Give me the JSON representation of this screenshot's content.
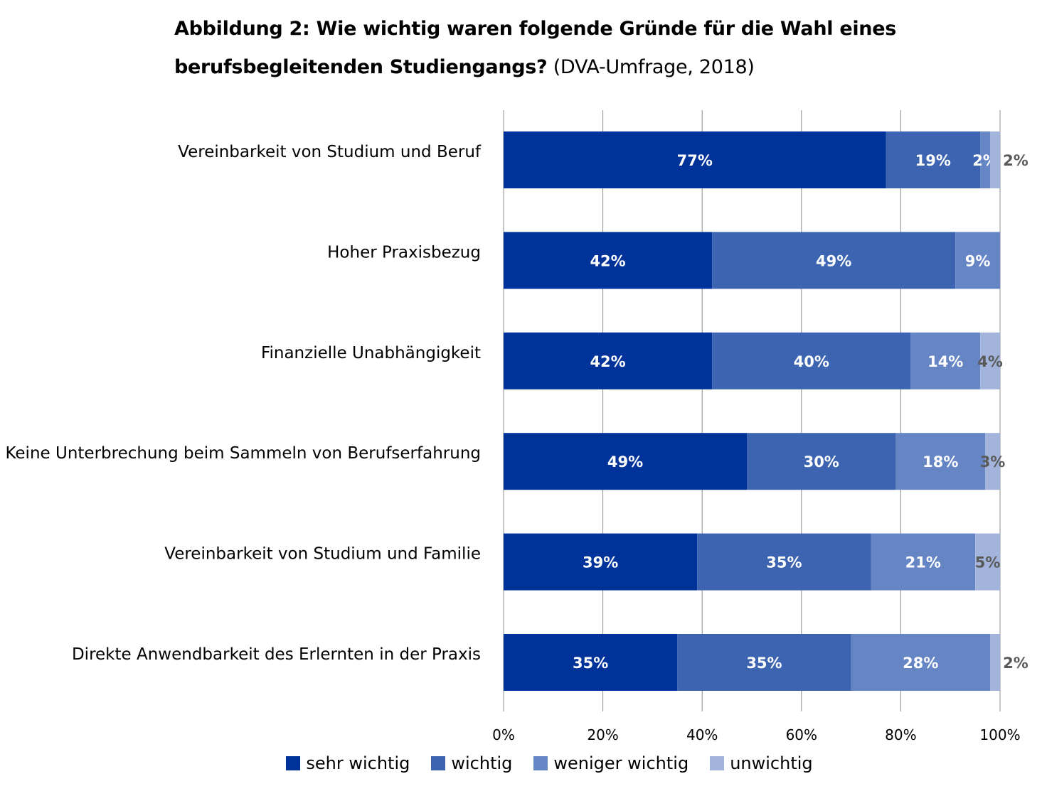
{
  "title": {
    "bold": "Abbildung 2: Wie wichtig waren folgende Gründe für die Wahl eines berufsbegleitenden Studiengangs?",
    "normal": "(DVA-Umfrage, 2018)"
  },
  "chart_data": {
    "type": "bar",
    "orientation": "horizontal",
    "stacked": true,
    "categories": [
      "Vereinbarkeit von Studium und Beruf",
      "Hoher Praxisbezug",
      "Finanzielle Unabhängigkeit",
      "Keine Unterbrechung beim Sammeln von Berufserfahrung",
      "Vereinbarkeit von Studium und Familie",
      "Direkte Anwendbarkeit des Erlernten in der Praxis"
    ],
    "series": [
      {
        "name": "sehr wichtig",
        "color": "#003399",
        "values": [
          77,
          42,
          42,
          49,
          39,
          35
        ]
      },
      {
        "name": "wichtig",
        "color": "#3c64b0",
        "values": [
          19,
          49,
          40,
          30,
          35,
          35
        ]
      },
      {
        "name": "weniger wichtig",
        "color": "#6685c4",
        "values": [
          2,
          9,
          14,
          18,
          21,
          28
        ]
      },
      {
        "name": "unwichtig",
        "color": "#a3b4dc",
        "values": [
          2,
          0,
          4,
          3,
          5,
          2
        ]
      }
    ],
    "data_labels": [
      [
        "77%",
        "19%",
        "2%",
        "2%"
      ],
      [
        "42%",
        "49%",
        "9%",
        ""
      ],
      [
        "42%",
        "40%",
        "14%",
        "4%"
      ],
      [
        "49%",
        "30%",
        "18%",
        "3%"
      ],
      [
        "39%",
        "35%",
        "21%",
        "5%"
      ],
      [
        "35%",
        "35%",
        "28%",
        "2%"
      ]
    ],
    "xlim": [
      0,
      100
    ],
    "xticks": [
      "0%",
      "20%",
      "40%",
      "60%",
      "80%",
      "100%"
    ],
    "grid": true,
    "legend": "bottom",
    "inside_label_color": "#ffffff",
    "outside_label_color": "#595959"
  }
}
